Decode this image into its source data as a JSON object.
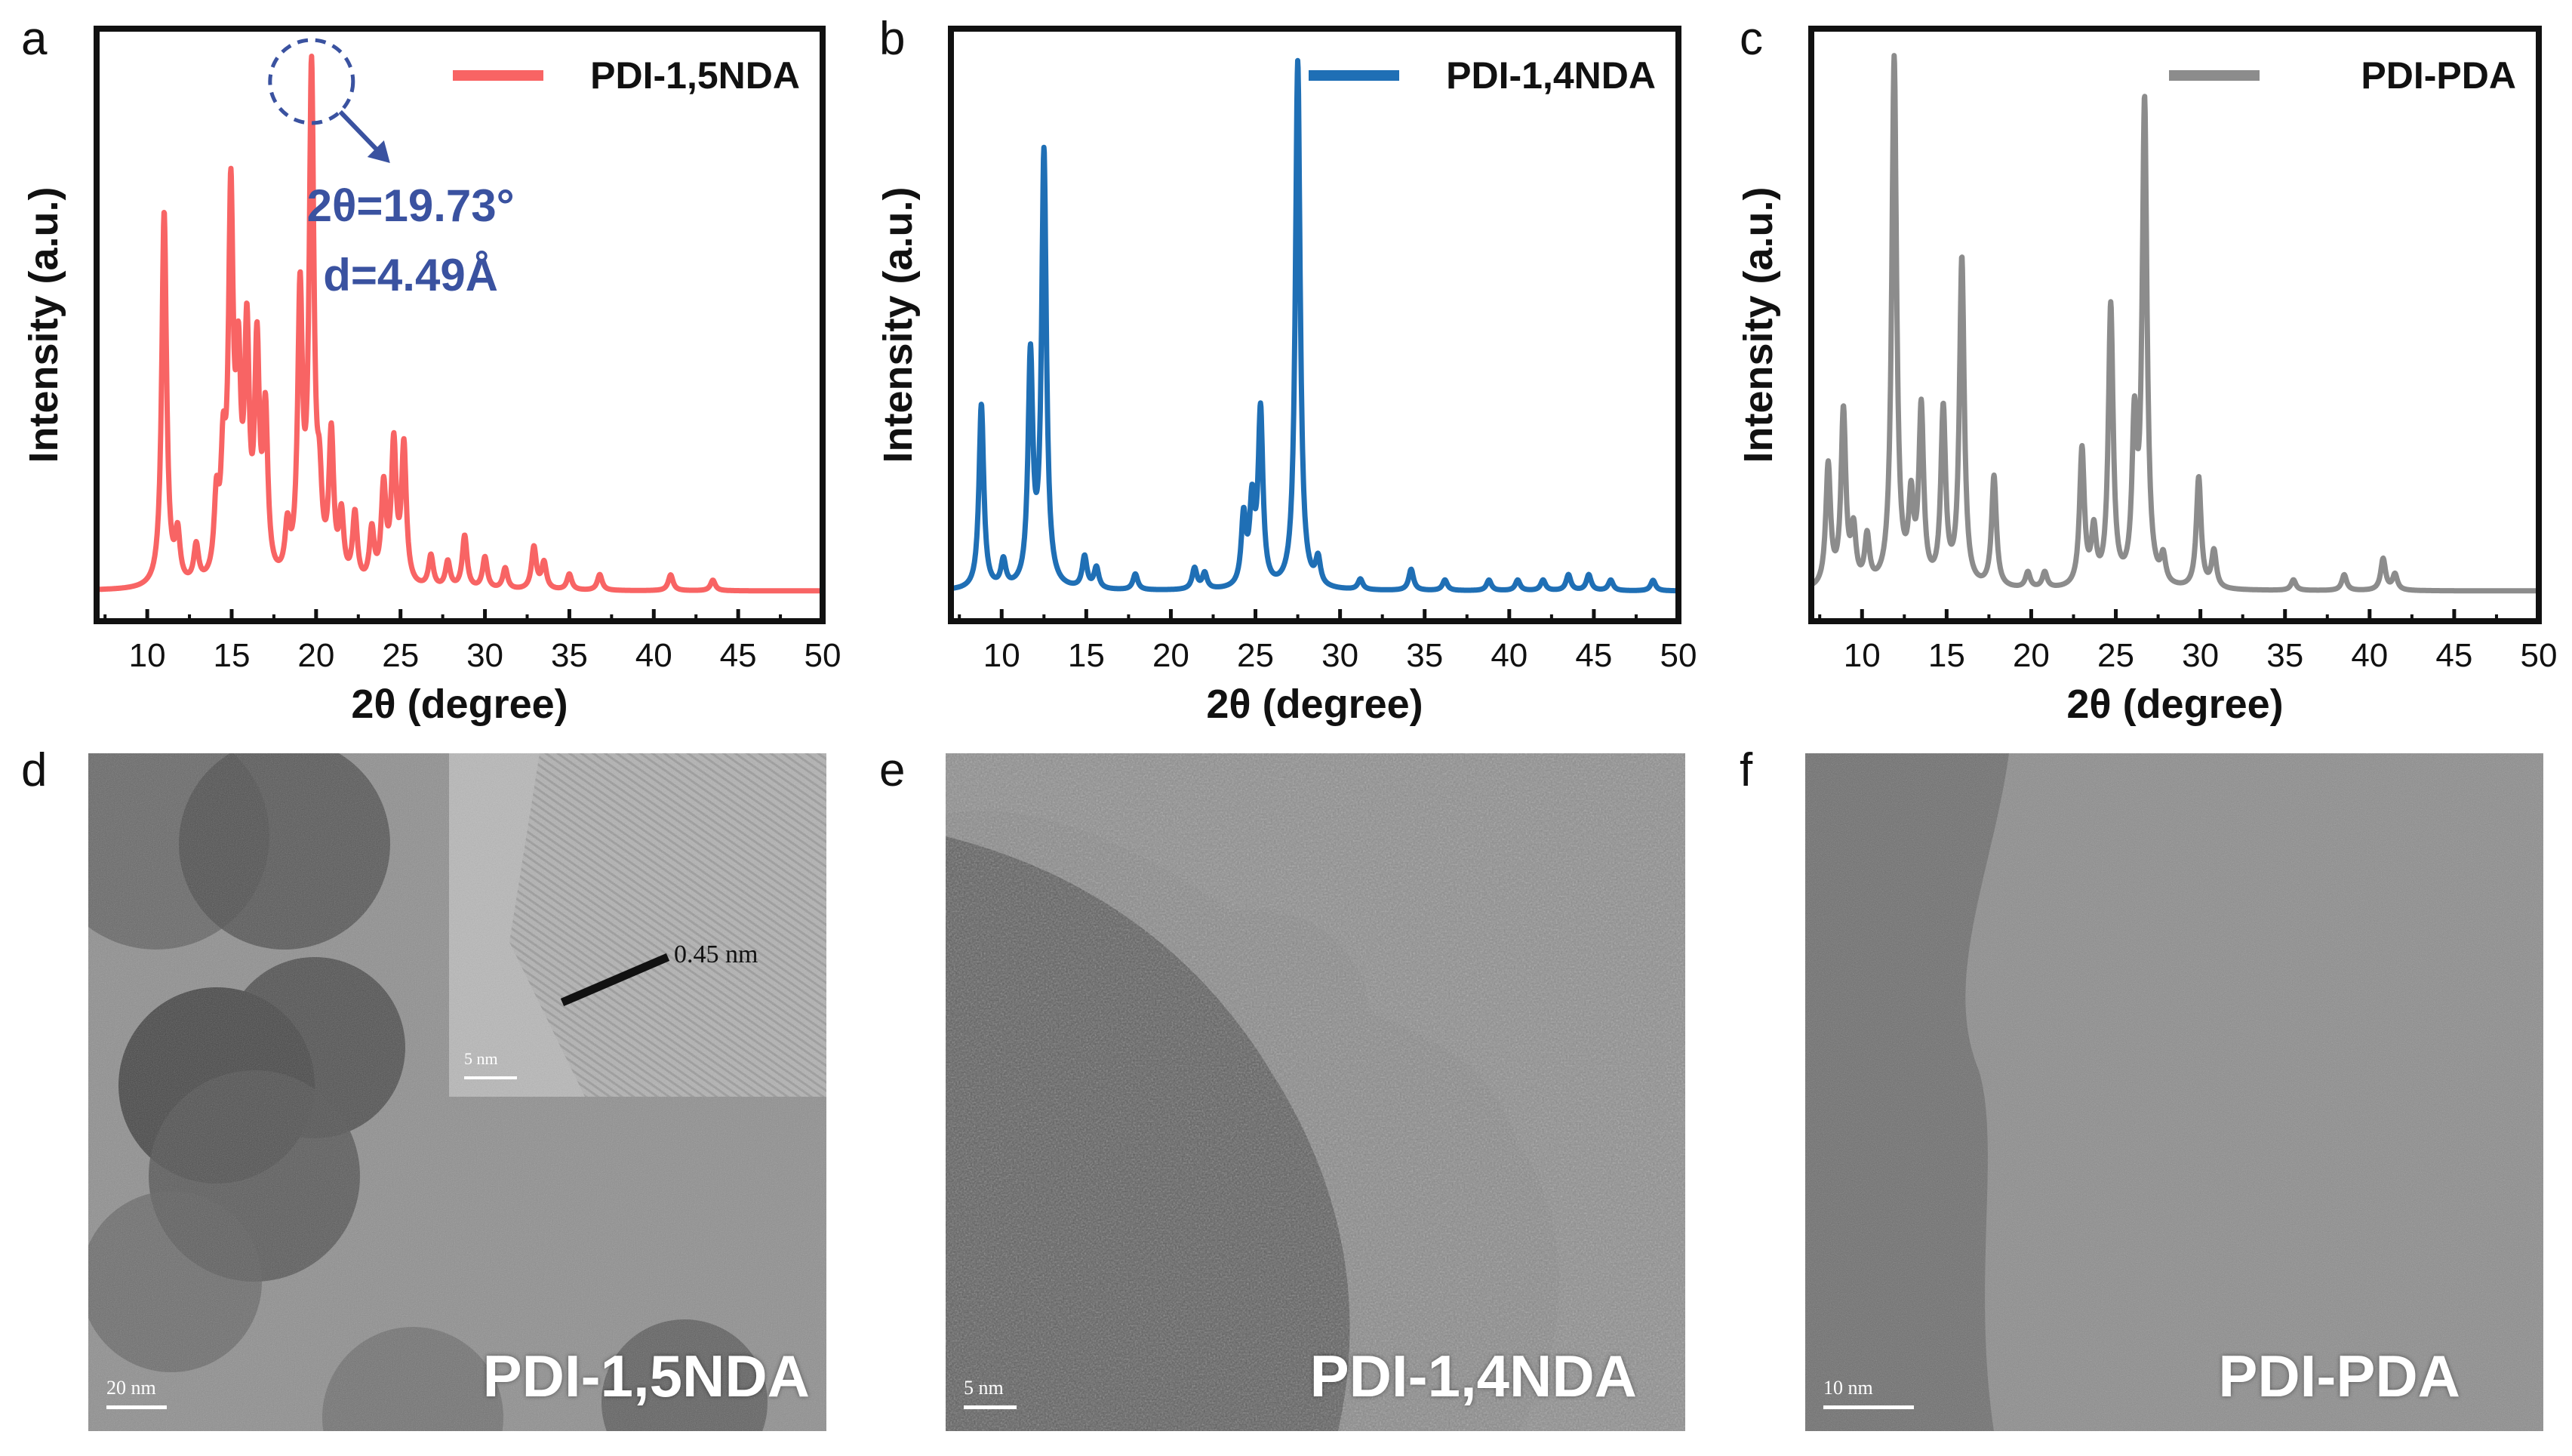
{
  "panel_letters": [
    "a",
    "b",
    "c",
    "d",
    "e",
    "f"
  ],
  "colors": {
    "pdi15": "#f86464",
    "pdi14": "#1f6fb5",
    "pdipda": "#8c8c8c",
    "annotation": "#3a52a0"
  },
  "chart_data": [
    {
      "type": "line",
      "xlabel": "2θ (degree)",
      "ylabel": "Intensity (a.u.)",
      "xlim": [
        7,
        50
      ],
      "ylim": [
        0,
        1
      ],
      "xticks": [
        10,
        15,
        20,
        25,
        30,
        35,
        40,
        45,
        50
      ],
      "legend_position": "top-right",
      "baseline": 0.0,
      "series": [
        {
          "name": "PDI-1,5NDA",
          "color": "#f86464",
          "peaks": [
            [
              11.0,
              0.71
            ],
            [
              11.8,
              0.09
            ],
            [
              12.9,
              0.07
            ],
            [
              14.1,
              0.14
            ],
            [
              14.5,
              0.2
            ],
            [
              14.95,
              0.7
            ],
            [
              15.4,
              0.35
            ],
            [
              15.9,
              0.44
            ],
            [
              16.5,
              0.42
            ],
            [
              17.0,
              0.3
            ],
            [
              18.3,
              0.09
            ],
            [
              19.05,
              0.53
            ],
            [
              19.73,
              0.95
            ],
            [
              20.2,
              0.14
            ],
            [
              20.9,
              0.27
            ],
            [
              21.5,
              0.12
            ],
            [
              22.3,
              0.13
            ],
            [
              23.3,
              0.1
            ],
            [
              24.0,
              0.18
            ],
            [
              24.6,
              0.26
            ],
            [
              25.2,
              0.26
            ],
            [
              26.8,
              0.06
            ],
            [
              27.8,
              0.05
            ],
            [
              28.8,
              0.1
            ],
            [
              30.0,
              0.06
            ],
            [
              31.2,
              0.04
            ],
            [
              32.9,
              0.08
            ],
            [
              33.5,
              0.05
            ],
            [
              35.0,
              0.03
            ],
            [
              36.8,
              0.03
            ],
            [
              41.0,
              0.03
            ],
            [
              43.5,
              0.02
            ]
          ]
        },
        {
          "name": "PDI-1,4NDA",
          "color": "#1f6fb5",
          "peaks": [
            [
              8.8,
              0.35
            ],
            [
              10.1,
              0.05
            ],
            [
              11.7,
              0.43
            ],
            [
              12.5,
              0.82
            ],
            [
              14.9,
              0.06
            ],
            [
              15.6,
              0.04
            ],
            [
              17.9,
              0.03
            ],
            [
              21.4,
              0.04
            ],
            [
              22.0,
              0.03
            ],
            [
              24.3,
              0.13
            ],
            [
              24.8,
              0.15
            ],
            [
              25.3,
              0.33
            ],
            [
              27.5,
              1.0
            ],
            [
              28.7,
              0.05
            ],
            [
              31.2,
              0.02
            ],
            [
              34.2,
              0.04
            ],
            [
              36.2,
              0.02
            ],
            [
              38.8,
              0.02
            ],
            [
              40.5,
              0.02
            ],
            [
              42.0,
              0.02
            ],
            [
              43.5,
              0.03
            ],
            [
              44.7,
              0.03
            ],
            [
              46.0,
              0.02
            ],
            [
              48.5,
              0.02
            ]
          ]
        },
        {
          "name": "PDI-PDA",
          "color": "#8c8c8c",
          "peaks": [
            [
              8.0,
              0.23
            ],
            [
              8.9,
              0.33
            ],
            [
              9.5,
              0.1
            ],
            [
              10.3,
              0.09
            ],
            [
              11.9,
              1.0
            ],
            [
              12.9,
              0.15
            ],
            [
              13.5,
              0.33
            ],
            [
              14.8,
              0.33
            ],
            [
              15.9,
              0.62
            ],
            [
              17.8,
              0.21
            ],
            [
              19.8,
              0.03
            ],
            [
              20.8,
              0.03
            ],
            [
              23.0,
              0.26
            ],
            [
              23.7,
              0.1
            ],
            [
              24.7,
              0.53
            ],
            [
              26.1,
              0.29
            ],
            [
              26.7,
              0.91
            ],
            [
              27.8,
              0.05
            ],
            [
              29.9,
              0.21
            ],
            [
              30.8,
              0.07
            ],
            [
              35.5,
              0.02
            ],
            [
              38.5,
              0.03
            ],
            [
              40.8,
              0.06
            ],
            [
              41.5,
              0.03
            ]
          ]
        }
      ],
      "annotation": {
        "lines": [
          "2θ=19.73°",
          "d=4.49Å"
        ],
        "peak_x": 19.73
      }
    }
  ],
  "tem": {
    "d": {
      "label": "PDI-1,5NDA",
      "scale": "20 nm",
      "inset_scale": "5 nm",
      "fringe": "0.45 nm"
    },
    "e": {
      "label": "PDI-1,4NDA",
      "scale": "5 nm"
    },
    "f": {
      "label": "PDI-PDA",
      "scale": "10 nm"
    }
  }
}
